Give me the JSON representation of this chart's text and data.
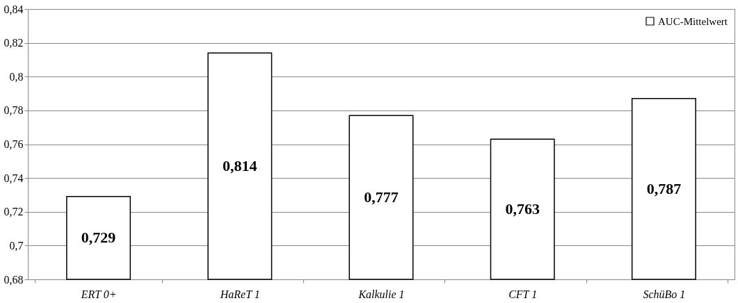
{
  "chart_data": {
    "type": "bar",
    "categories": [
      "ERT 0+",
      "HaReT 1",
      "Kalkulie 1",
      "CFT 1",
      "SchüBo 1"
    ],
    "series": [
      {
        "name": "AUC-Mittelwert",
        "color": "#ffffff",
        "values": [
          0.729,
          0.814,
          0.777,
          0.763,
          0.787
        ],
        "value_labels": [
          "0,729",
          "0,814",
          "0,777",
          "0,763",
          "0,787"
        ]
      }
    ],
    "ylim": [
      0.68,
      0.84
    ],
    "yticks": [
      {
        "value": 0.68,
        "label": "0,68"
      },
      {
        "value": 0.7,
        "label": "0,7"
      },
      {
        "value": 0.72,
        "label": "0,72"
      },
      {
        "value": 0.74,
        "label": "0,74"
      },
      {
        "value": 0.76,
        "label": "0,76"
      },
      {
        "value": 0.78,
        "label": "0,78"
      },
      {
        "value": 0.8,
        "label": "0,8"
      },
      {
        "value": 0.82,
        "label": "0,82"
      },
      {
        "value": 0.84,
        "label": "0,84"
      }
    ],
    "grid": "y",
    "legend": "top right"
  }
}
